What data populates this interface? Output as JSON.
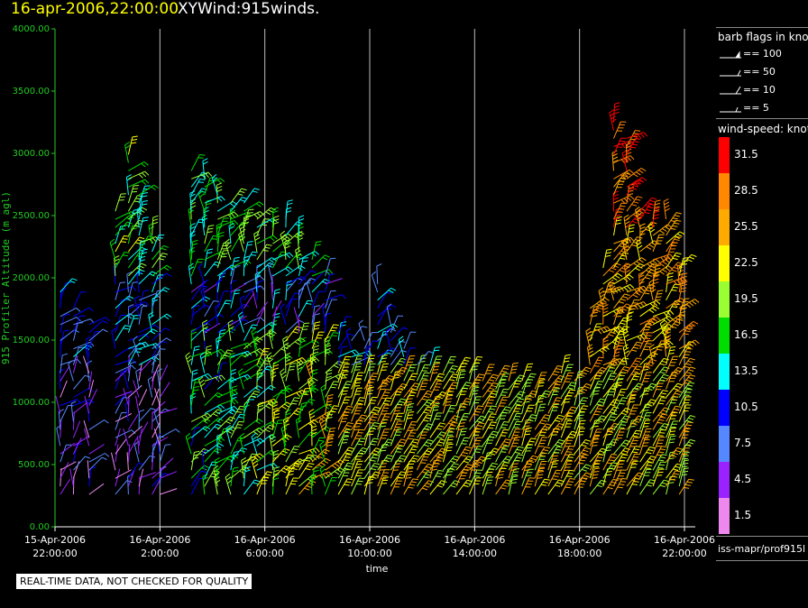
{
  "header": {
    "datetime": "16-apr-2006,22:00:00",
    "product": "XYWind:915winds."
  },
  "legend": {
    "barb_title": "barb flags in knots",
    "barb_items": [
      "== 100",
      "== 50",
      "== 10",
      "== 5"
    ],
    "speed_title": "wind-speed: knots",
    "speed_bins": [
      {
        "label": "31.5",
        "color": "#ff0000"
      },
      {
        "label": "28.5",
        "color": "#ff8800"
      },
      {
        "label": "25.5",
        "color": "#ffaa00"
      },
      {
        "label": "22.5",
        "color": "#ffff00"
      },
      {
        "label": "19.5",
        "color": "#99ff33"
      },
      {
        "label": "16.5",
        "color": "#00dd00"
      },
      {
        "label": "13.5",
        "color": "#00ffff"
      },
      {
        "label": "10.5",
        "color": "#0000ff"
      },
      {
        "label": "7.5",
        "color": "#5588ff"
      },
      {
        "label": "4.5",
        "color": "#9922ff"
      },
      {
        "label": "1.5",
        "color": "#ee88ee"
      }
    ],
    "source": "iss-mapr/prof915l"
  },
  "footer_note": "REAL-TIME DATA, NOT CHECKED FOR QUALITY",
  "chart_data": {
    "type": "wind barb time-height",
    "ylabel": "915 Profiler Altitude (m agl)",
    "xlabel": "time",
    "ylim": [
      0,
      4000
    ],
    "yticks": [
      "0.00",
      "500.00",
      "1000.00",
      "1500.00",
      "2000.00",
      "2500.00",
      "3000.00",
      "3500.00",
      "4000.00"
    ],
    "xlim_hours": [
      0,
      24
    ],
    "xticks": [
      {
        "hour": 0,
        "line1": "15-Apr-2006",
        "line2": "22:00:00"
      },
      {
        "hour": 4,
        "line1": "16-Apr-2006",
        "line2": "2:00:00"
      },
      {
        "hour": 8,
        "line1": "16-Apr-2006",
        "line2": "6:00:00"
      },
      {
        "hour": 12,
        "line1": "16-Apr-2006",
        "line2": "10:00:00"
      },
      {
        "hour": 16,
        "line1": "16-Apr-2006",
        "line2": "14:00:00"
      },
      {
        "hour": 20,
        "line1": "16-Apr-2006",
        "line2": "18:00:00"
      },
      {
        "hour": 24,
        "line1": "16-Apr-2006",
        "line2": "22:00:00"
      }
    ],
    "profiles": [
      {
        "hour": 0.2,
        "top": 1900
      },
      {
        "hour": 0.7,
        "top": 1800
      },
      {
        "hour": 1.3,
        "top": 1650
      },
      {
        "hour": 2.3,
        "top": 2550
      },
      {
        "hour": 2.8,
        "top": 3000
      },
      {
        "hour": 3.2,
        "top": 2700
      },
      {
        "hour": 3.7,
        "top": 2400
      },
      {
        "hour": 4.0,
        "top": 1200
      },
      {
        "hour": 5.2,
        "top": 2900
      },
      {
        "hour": 5.7,
        "top": 2850
      },
      {
        "hour": 6.2,
        "top": 2700
      },
      {
        "hour": 6.7,
        "top": 2650
      },
      {
        "hour": 7.2,
        "top": 2600
      },
      {
        "hour": 7.7,
        "top": 2500
      },
      {
        "hour": 8.3,
        "top": 2450
      },
      {
        "hour": 8.8,
        "top": 2500
      },
      {
        "hour": 9.3,
        "top": 2350
      },
      {
        "hour": 9.8,
        "top": 2150
      },
      {
        "hour": 10.3,
        "top": 2050
      },
      {
        "hour": 10.8,
        "top": 1600
      },
      {
        "hour": 11.3,
        "top": 1550
      },
      {
        "hour": 11.8,
        "top": 1500
      },
      {
        "hour": 12.3,
        "top": 2000
      },
      {
        "hour": 12.8,
        "top": 1650
      },
      {
        "hour": 13.3,
        "top": 1450
      },
      {
        "hour": 13.8,
        "top": 1350
      },
      {
        "hour": 14.3,
        "top": 1300
      },
      {
        "hour": 14.8,
        "top": 1250
      },
      {
        "hour": 15.3,
        "top": 1250
      },
      {
        "hour": 15.8,
        "top": 1250
      },
      {
        "hour": 16.3,
        "top": 1200
      },
      {
        "hour": 16.8,
        "top": 1200
      },
      {
        "hour": 17.3,
        "top": 1200
      },
      {
        "hour": 17.8,
        "top": 1200
      },
      {
        "hour": 18.3,
        "top": 1150
      },
      {
        "hour": 18.8,
        "top": 1200
      },
      {
        "hour": 19.3,
        "top": 1250
      },
      {
        "hour": 19.8,
        "top": 1200
      },
      {
        "hour": 20.4,
        "top": 1800
      },
      {
        "hour": 20.9,
        "top": 2100
      },
      {
        "hour": 21.3,
        "top": 3250
      },
      {
        "hour": 21.8,
        "top": 3150
      },
      {
        "hour": 22.3,
        "top": 2550
      },
      {
        "hour": 22.8,
        "top": 2500
      },
      {
        "hour": 23.3,
        "top": 2500
      },
      {
        "hour": 23.8,
        "top": 2100
      }
    ]
  }
}
